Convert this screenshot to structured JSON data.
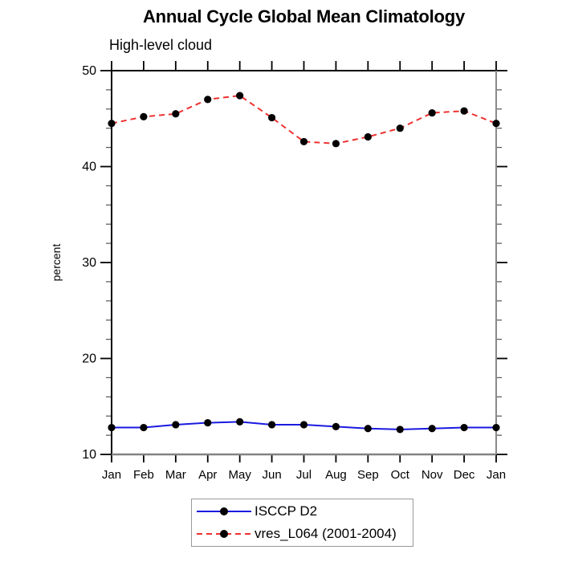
{
  "title": "Annual Cycle Global Mean Climatology",
  "subtitle": "High-level cloud",
  "chart_data": {
    "type": "line",
    "title": "Annual Cycle Global Mean Climatology",
    "subtitle": "High-level cloud",
    "xlabel": "",
    "ylabel": "percent",
    "ylim": [
      10,
      50
    ],
    "yticks": [
      10,
      20,
      30,
      40,
      50
    ],
    "y_minor_step": 2,
    "grid": "off",
    "legend_position": "bottom",
    "categories": [
      "Jan",
      "Feb",
      "Mar",
      "Apr",
      "May",
      "Jun",
      "Jul",
      "Aug",
      "Sep",
      "Oct",
      "Nov",
      "Dec",
      "Jan"
    ],
    "series": [
      {
        "name": "ISCCP D2",
        "color": "#1a1ae0",
        "line_style": "solid",
        "marker": "black-dot",
        "values": [
          12.8,
          12.8,
          13.1,
          13.3,
          13.4,
          13.1,
          13.1,
          12.9,
          12.7,
          12.6,
          12.7,
          12.8,
          12.8
        ]
      },
      {
        "name": "vres_L064 (2001-2004)",
        "color": "#ee3232",
        "line_style": "dashed",
        "marker": "black-dot",
        "values": [
          44.5,
          45.2,
          45.5,
          47.0,
          47.4,
          45.1,
          42.6,
          42.4,
          43.1,
          44.0,
          45.6,
          45.8,
          44.5
        ]
      }
    ],
    "frame_colors": {
      "top": "#000000",
      "left": "#000000",
      "bottom": "#828282",
      "right": "#8a8a8a"
    },
    "marker_color": "#000000"
  }
}
